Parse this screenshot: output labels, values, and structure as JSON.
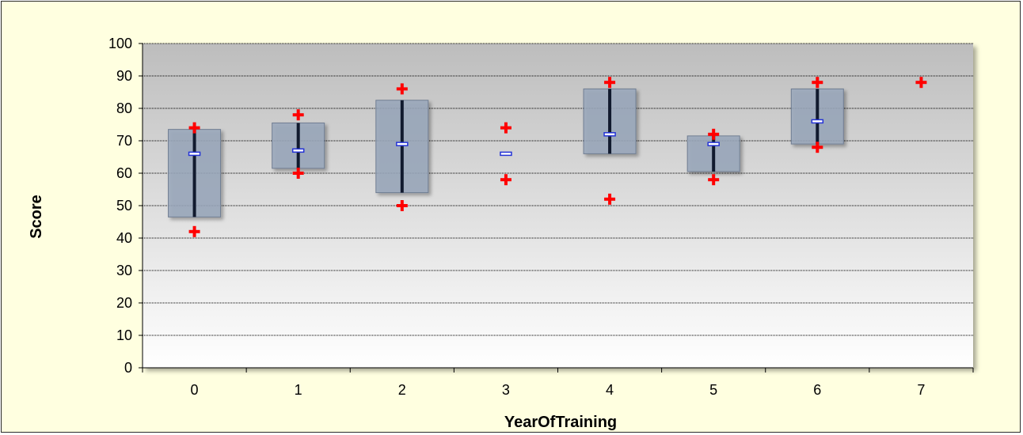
{
  "chart_data": {
    "type": "box",
    "xlabel": "YearOfTraining",
    "ylabel": "Score",
    "ylim": [
      0,
      100
    ],
    "yticks": [
      0,
      10,
      20,
      30,
      40,
      50,
      60,
      70,
      80,
      90,
      100
    ],
    "categories": [
      "0",
      "1",
      "2",
      "3",
      "4",
      "5",
      "6",
      "7"
    ],
    "grid": true,
    "boxes": [
      {
        "category": "0",
        "q1": 46.5,
        "q3": 73.5,
        "whisker_low": 46.5,
        "whisker_high": 73.5,
        "median": 66,
        "outliers": [
          74,
          42
        ]
      },
      {
        "category": "1",
        "q1": 61.5,
        "q3": 75.5,
        "whisker_low": 61.5,
        "whisker_high": 75.5,
        "median": 67,
        "outliers": [
          78,
          60
        ]
      },
      {
        "category": "2",
        "q1": 54,
        "q3": 82.5,
        "whisker_low": 54,
        "whisker_high": 82.5,
        "median": 69,
        "outliers": [
          86,
          50
        ]
      },
      {
        "category": "3",
        "q1": null,
        "q3": null,
        "whisker_low": null,
        "whisker_high": null,
        "median": 66,
        "outliers": [
          74,
          58
        ]
      },
      {
        "category": "4",
        "q1": 66,
        "q3": 86,
        "whisker_low": 66,
        "whisker_high": 86,
        "median": 72,
        "outliers": [
          88,
          52
        ]
      },
      {
        "category": "5",
        "q1": 60.5,
        "q3": 71.5,
        "whisker_low": 60.5,
        "whisker_high": 71.5,
        "median": 69,
        "outliers": [
          72,
          58
        ]
      },
      {
        "category": "6",
        "q1": 69,
        "q3": 86,
        "whisker_low": 69,
        "whisker_high": 86,
        "median": 76,
        "outliers": [
          88,
          68
        ]
      },
      {
        "category": "7",
        "q1": null,
        "q3": null,
        "whisker_low": null,
        "whisker_high": null,
        "median": null,
        "outliers": [
          88
        ]
      }
    ],
    "colors": {
      "frame_background": "#ffffe0",
      "plot_top": "#bdbdbd",
      "plot_bottom": "#ffffff",
      "box_fill": "#9aa8bc",
      "whisker": "#111a2e",
      "median": "#2433d6",
      "outlier": "#ff0000"
    }
  }
}
